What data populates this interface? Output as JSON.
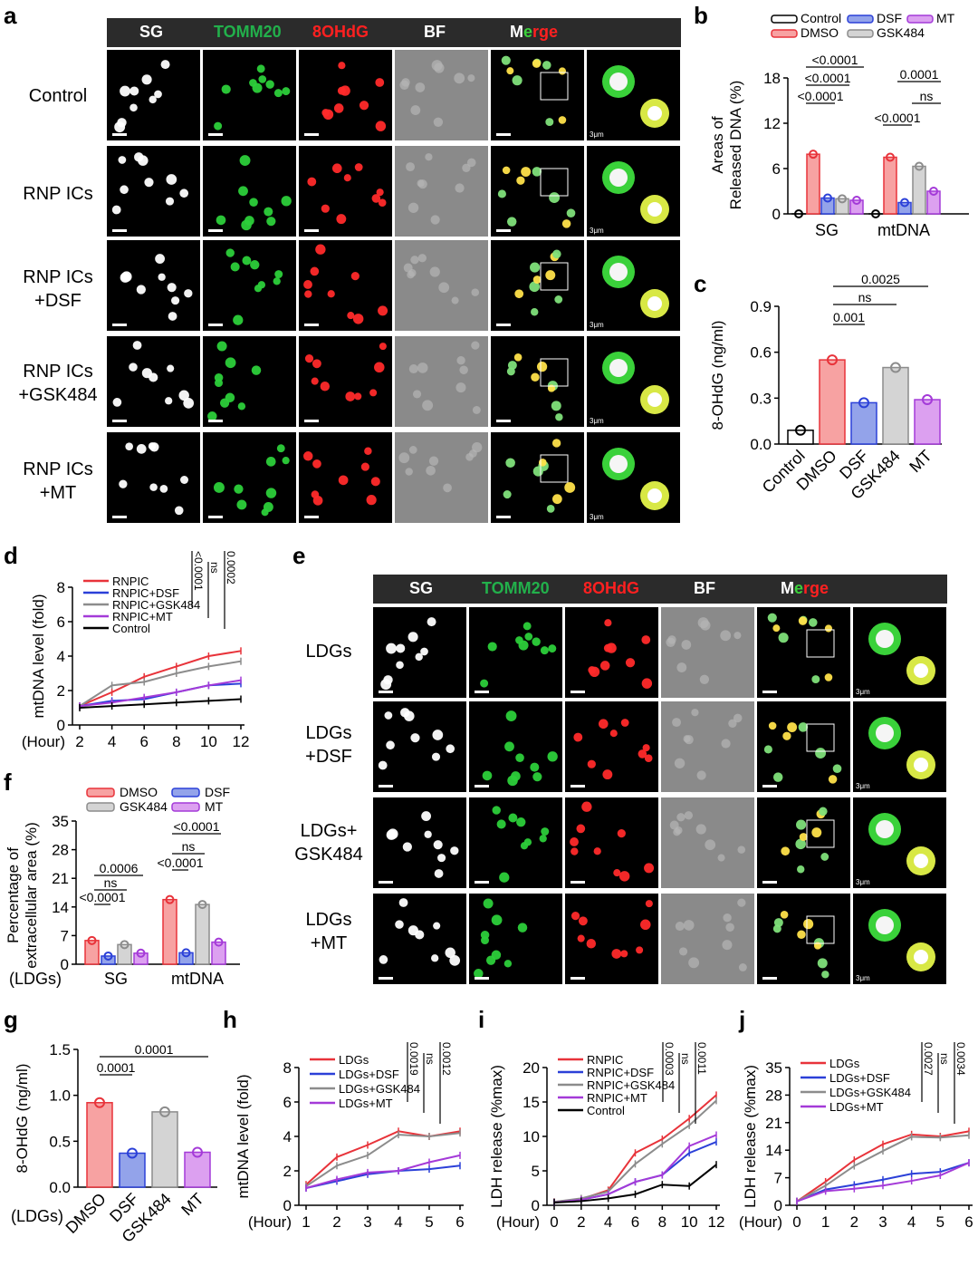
{
  "panels": {
    "a": "a",
    "b": "b",
    "c": "c",
    "d": "d",
    "e": "e",
    "f": "f",
    "g": "g",
    "h": "h",
    "i": "i",
    "j": "j"
  },
  "channels": {
    "sg": "SG",
    "tomm20": "TOMM20",
    "ohdg": "8OHdG",
    "bf": "BF",
    "merge_m": "M",
    "merge_e": "e",
    "merge_rge": "rge"
  },
  "colors": {
    "sg": "#ffffff",
    "tomm20": "#22b04b",
    "ohdg": "#ff2020",
    "bf": "#ffffff",
    "merge_m": "#3ad13a",
    "merge_rest": "#ff2020"
  },
  "scale": "3μm",
  "panel_a_rows": [
    {
      "l1": "Control",
      "l2": ""
    },
    {
      "l1": "RNP ICs",
      "l2": ""
    },
    {
      "l1": "RNP ICs",
      "l2": "+DSF"
    },
    {
      "l1": "RNP ICs",
      "l2": "+GSK484"
    },
    {
      "l1": "RNP ICs",
      "l2": "+MT"
    }
  ],
  "panel_e_rows": [
    {
      "l1": "LDGs",
      "l2": ""
    },
    {
      "l1": "LDGs",
      "l2": "+DSF"
    },
    {
      "l1": "LDGs+",
      "l2": "GSK484"
    },
    {
      "l1": "LDGs",
      "l2": "+MT"
    }
  ],
  "chart_data": [
    {
      "panel": "b",
      "type": "bar",
      "title": "",
      "ylabel": "Areas of Released DNA (%)",
      "ylim": [
        0,
        18
      ],
      "yticks": [
        0,
        6,
        12,
        18
      ],
      "categories": [
        "SG",
        "mtDNA"
      ],
      "legend": [
        "Control",
        "DMSO",
        "DSF",
        "GSK484",
        "MT"
      ],
      "series": [
        {
          "name": "Control",
          "values": [
            0,
            0
          ]
        },
        {
          "name": "DMSO",
          "values": [
            7.9,
            7.5
          ]
        },
        {
          "name": "DSF",
          "values": [
            2.1,
            1.5
          ]
        },
        {
          "name": "GSK484",
          "values": [
            2.0,
            6.3
          ]
        },
        {
          "name": "MT",
          "values": [
            1.8,
            3.0
          ]
        }
      ],
      "annotations": [
        "<0.0001",
        "<0.0001",
        "<0.0001",
        "<0.0001",
        "0.0001",
        "ns"
      ]
    },
    {
      "panel": "c",
      "type": "bar",
      "ylabel": "8-OHdG (ng/ml)",
      "ylim": [
        0,
        0.9
      ],
      "yticks": [
        "0.0",
        "0.3",
        "0.6",
        "0.9"
      ],
      "categories": [
        "Control",
        "DMSO",
        "DSF",
        "GSK484",
        "MT"
      ],
      "values": [
        0.09,
        0.55,
        0.27,
        0.5,
        0.29
      ],
      "annotations": [
        "0.001",
        "ns",
        "0.0025"
      ]
    },
    {
      "panel": "d",
      "type": "line",
      "ylabel": "mtDNA level (fold)",
      "xlabel": "(Hour)",
      "ylim": [
        0,
        8
      ],
      "x": [
        2,
        4,
        6,
        8,
        10,
        12
      ],
      "yticks": [
        0,
        2,
        4,
        6,
        8
      ],
      "series": [
        {
          "name": "RNPIC",
          "values": [
            1.1,
            1.9,
            2.8,
            3.4,
            4.0,
            4.3
          ]
        },
        {
          "name": "RNPIC+DSF",
          "values": [
            1.1,
            1.4,
            1.5,
            1.9,
            2.3,
            2.4
          ]
        },
        {
          "name": "RNPIC+GSK484",
          "values": [
            1.1,
            2.3,
            2.5,
            3.0,
            3.4,
            3.7
          ]
        },
        {
          "name": "RNPIC+MT",
          "values": [
            1.1,
            1.3,
            1.6,
            1.9,
            2.3,
            2.6
          ]
        },
        {
          "name": "Control",
          "values": [
            1.0,
            1.1,
            1.2,
            1.3,
            1.4,
            1.5
          ]
        }
      ],
      "annotations": [
        "<0.0001",
        "ns",
        "0.0002"
      ]
    },
    {
      "panel": "f",
      "type": "bar",
      "ylabel": "Percentage of extracellular area (%)",
      "xlabel": "(LDGs)",
      "ylim": [
        0,
        35
      ],
      "yticks": [
        0,
        7,
        14,
        21,
        28,
        35
      ],
      "categories": [
        "SG",
        "mtDNA"
      ],
      "legend": [
        "DMSO",
        "DSF",
        "GSK484",
        "MT"
      ],
      "series": [
        {
          "name": "DMSO",
          "values": [
            5.8,
            15.8
          ]
        },
        {
          "name": "DSF",
          "values": [
            2.0,
            2.8
          ]
        },
        {
          "name": "GSK484",
          "values": [
            4.8,
            14.6
          ]
        },
        {
          "name": "MT",
          "values": [
            2.7,
            5.4
          ]
        }
      ],
      "annotations": [
        "<0.0001",
        "ns",
        "0.0006",
        "<0.0001",
        "ns",
        "<0.0001"
      ]
    },
    {
      "panel": "g",
      "type": "bar",
      "ylabel": "8-OHdG (ng/ml)",
      "xlabel": "(LDGs)",
      "ylim": [
        0,
        1.5
      ],
      "yticks": [
        "0.0",
        "0.5",
        "1.0",
        "1.5"
      ],
      "categories": [
        "DMSO",
        "DSF",
        "GSK484",
        "MT"
      ],
      "values": [
        0.92,
        0.37,
        0.82,
        0.38
      ],
      "annotations": [
        "0.0001",
        "0.0001"
      ]
    },
    {
      "panel": "h",
      "type": "line",
      "ylabel": "mtDNA level (fold)",
      "xlabel": "(Hour)",
      "ylim": [
        0,
        8
      ],
      "x": [
        1,
        2,
        3,
        4,
        5,
        6
      ],
      "yticks": [
        0,
        2,
        4,
        6,
        8
      ],
      "series": [
        {
          "name": "LDGs",
          "values": [
            1.2,
            2.8,
            3.5,
            4.3,
            4.0,
            4.3
          ]
        },
        {
          "name": "LDGs+DSF",
          "values": [
            1.0,
            1.4,
            1.8,
            2.0,
            2.1,
            2.3
          ]
        },
        {
          "name": "LDGs+GSK484",
          "values": [
            1.1,
            2.3,
            2.9,
            4.1,
            4.0,
            4.2
          ]
        },
        {
          "name": "LDGs+MT",
          "values": [
            1.0,
            1.5,
            1.9,
            2.0,
            2.5,
            2.9
          ]
        }
      ],
      "annotations": [
        "0.0019",
        "ns",
        "0.0012"
      ]
    },
    {
      "panel": "i",
      "type": "line",
      "ylabel": "LDH release (%max)",
      "xlabel": "(Hour)",
      "ylim": [
        0,
        20
      ],
      "x": [
        0,
        2,
        4,
        6,
        8,
        10,
        12
      ],
      "yticks": [
        0,
        5,
        10,
        15,
        20
      ],
      "series": [
        {
          "name": "RNPIC",
          "values": [
            0.5,
            0.9,
            2.2,
            7.6,
            9.6,
            12.6,
            16.0
          ]
        },
        {
          "name": "RNPIC+DSF",
          "values": [
            0.4,
            0.8,
            1.6,
            3.4,
            4.4,
            7.6,
            9.2
          ]
        },
        {
          "name": "RNPIC+GSK484",
          "values": [
            0.5,
            1.0,
            2.0,
            6.0,
            8.9,
            11.6,
            15.2
          ]
        },
        {
          "name": "RNPIC+MT",
          "values": [
            0.4,
            0.8,
            1.6,
            3.4,
            4.4,
            8.6,
            10.2
          ]
        },
        {
          "name": "Control",
          "values": [
            0.4,
            0.6,
            1.0,
            1.6,
            3.0,
            2.8,
            5.9
          ]
        }
      ],
      "annotations": [
        "0.0003",
        "ns",
        "0.0011"
      ]
    },
    {
      "panel": "j",
      "type": "line",
      "ylabel": "LDH release (%max)",
      "xlabel": "(Hour)",
      "ylim": [
        0,
        35
      ],
      "x": [
        0,
        1,
        2,
        3,
        4,
        5,
        6
      ],
      "yticks": [
        0,
        7,
        14,
        21,
        28,
        35
      ],
      "series": [
        {
          "name": "LDGs",
          "values": [
            1.0,
            6.0,
            11.5,
            15.5,
            18.0,
            17.5,
            18.8
          ]
        },
        {
          "name": "LDGs+DSF",
          "values": [
            1.0,
            4.0,
            5.2,
            6.5,
            8.0,
            8.5,
            10.8
          ]
        },
        {
          "name": "LDGs+GSK484",
          "values": [
            1.0,
            5.0,
            10.0,
            13.8,
            17.4,
            17.2,
            17.8
          ]
        },
        {
          "name": "LDGs+MT",
          "values": [
            1.0,
            3.6,
            4.2,
            5.0,
            6.2,
            7.6,
            10.8
          ]
        }
      ],
      "annotations": [
        "0.0027",
        "ns",
        "0.0034"
      ]
    }
  ]
}
